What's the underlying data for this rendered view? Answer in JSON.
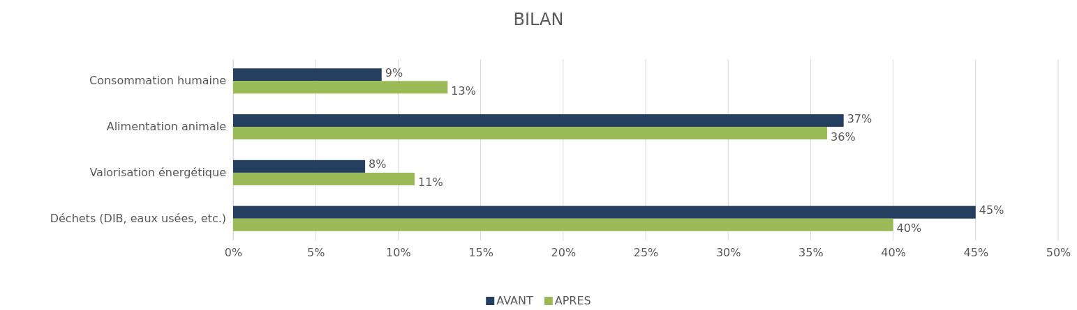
{
  "chart_data": {
    "type": "bar",
    "orientation": "horizontal",
    "title": "BILAN",
    "categories": [
      "Consommation humaine",
      "Alimentation animale",
      "Valorisation énergétique",
      "Déchets (DIB, eaux usées, etc.)"
    ],
    "series": [
      {
        "name": "AVANT",
        "color": "#243f60",
        "values": [
          9,
          37,
          8,
          45
        ],
        "value_labels": [
          "9%",
          "37%",
          "8%",
          "45%"
        ]
      },
      {
        "name": "APRES",
        "color": "#9bbb59",
        "values": [
          13,
          36,
          11,
          40
        ],
        "value_labels": [
          "13%",
          "36%",
          "11%",
          "40%"
        ]
      }
    ],
    "xlim": [
      0,
      50
    ],
    "xticks": [
      {
        "value": 0,
        "label": "0%"
      },
      {
        "value": 5,
        "label": "5%"
      },
      {
        "value": 10,
        "label": "10%"
      },
      {
        "value": 15,
        "label": "15%"
      },
      {
        "value": 20,
        "label": "20%"
      },
      {
        "value": 25,
        "label": "25%"
      },
      {
        "value": 30,
        "label": "30%"
      },
      {
        "value": 35,
        "label": "35%"
      },
      {
        "value": 40,
        "label": "40%"
      },
      {
        "value": 45,
        "label": "45%"
      },
      {
        "value": 50,
        "label": "50%"
      }
    ],
    "grid": "x",
    "legend": "bottom"
  }
}
